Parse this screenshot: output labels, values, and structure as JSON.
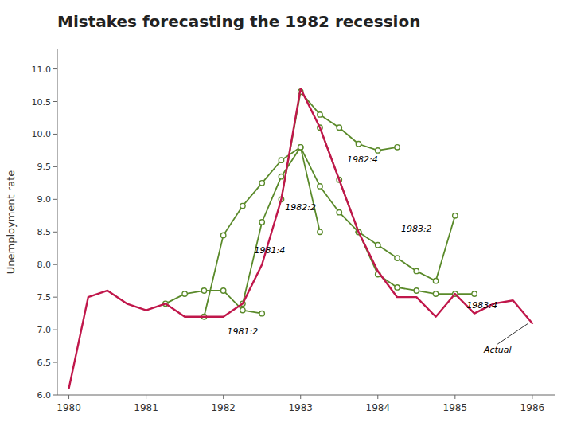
{
  "chart_data": {
    "type": "line",
    "title": "Mistakes forecasting the 1982 recession",
    "y_label": "Unemployment rate",
    "xlim": [
      1979.85,
      1986.3
    ],
    "ylim": [
      6.0,
      11.3
    ],
    "xticks": [
      1980,
      1981,
      1982,
      1983,
      1984,
      1985,
      1986
    ],
    "yticks": [
      {
        "value": 6.0,
        "label": "6.0"
      },
      6.5,
      {
        "value": 7.0,
        "label": "7.0"
      },
      7.5,
      {
        "value": 8.0,
        "label": "8.0"
      },
      8.5,
      {
        "value": 9.0,
        "label": "9.0"
      },
      9.5,
      {
        "value": 10.0,
        "label": "10.0"
      },
      10.5,
      {
        "value": 11.0,
        "label": "11.0"
      }
    ],
    "grid": false,
    "series": [
      {
        "color": "#c0174b",
        "x": [
          1980.0,
          1980.25,
          1980.5,
          1980.75,
          1981.0,
          1981.25,
          1981.5,
          1981.75,
          1982.0,
          1982.25,
          1982.5,
          1982.75,
          1983.0,
          1983.25,
          1983.5,
          1983.75,
          1984.0,
          1984.25,
          1984.5,
          1984.75,
          1985.0,
          1985.25,
          1985.5,
          1985.75,
          1986.0
        ],
        "values": [
          6.1,
          7.5,
          7.6,
          7.4,
          7.3,
          7.4,
          7.2,
          7.2,
          7.2,
          7.4,
          8.0,
          9.0,
          10.7,
          10.1,
          9.3,
          8.5,
          7.9,
          7.5,
          7.5,
          7.2,
          7.55,
          7.25,
          7.4,
          7.45,
          7.1
        ]
      },
      {
        "color": "#5a8a2a",
        "marker": "circle",
        "x": [
          1981.25,
          1981.5,
          1981.75,
          1982.0,
          1982.25,
          1982.5
        ],
        "values": [
          7.4,
          7.55,
          7.6,
          7.6,
          7.3,
          7.25
        ]
      },
      {
        "color": "#5a8a2a",
        "marker": "circle",
        "x": [
          1981.75,
          1982.0,
          1982.25,
          1982.5,
          1982.75,
          1983.0,
          1983.25
        ],
        "values": [
          7.2,
          8.45,
          8.9,
          9.25,
          9.6,
          9.8,
          8.5
        ]
      },
      {
        "color": "#5a8a2a",
        "marker": "circle",
        "x": [
          1982.25,
          1982.5,
          1982.75,
          1983.0,
          1983.25,
          1983.5,
          1983.75
        ],
        "values": [
          7.4,
          8.65,
          9.35,
          9.8,
          9.2,
          8.8,
          8.5
        ]
      },
      {
        "color": "#5a8a2a",
        "marker": "circle",
        "x": [
          1982.75,
          1983.0,
          1983.25,
          1983.5,
          1983.75,
          1984.0,
          1984.25
        ],
        "values": [
          9.0,
          10.65,
          10.3,
          10.1,
          9.85,
          9.75,
          9.8
        ]
      },
      {
        "color": "#5a8a2a",
        "marker": "circle",
        "x": [
          1983.25,
          1983.5,
          1983.75,
          1984.0,
          1984.25,
          1984.5,
          1984.75,
          1985.0
        ],
        "values": [
          10.1,
          9.3,
          8.5,
          8.3,
          8.1,
          7.9,
          7.75,
          8.75
        ]
      },
      {
        "color": "#5a8a2a",
        "marker": "circle",
        "x": [
          1983.75,
          1984.0,
          1984.25,
          1984.5,
          1984.75,
          1985.0,
          1985.25
        ],
        "values": [
          8.5,
          7.85,
          7.65,
          7.6,
          7.55,
          7.55,
          7.55
        ]
      }
    ],
    "annotations": [
      {
        "text": "1981:2",
        "x": 1982.05,
        "y": 6.98
      },
      {
        "text": "1981:4",
        "x": 1982.4,
        "y": 8.22
      },
      {
        "text": "1982:2",
        "x": 1982.8,
        "y": 8.88
      },
      {
        "text": "1982:4",
        "x": 1983.6,
        "y": 9.62
      },
      {
        "text": "1983:2",
        "x": 1984.3,
        "y": 8.55
      },
      {
        "text": "1983:4",
        "x": 1985.15,
        "y": 7.38
      },
      {
        "text": "Actual",
        "x": 1985.55,
        "y": 6.78,
        "arrow_x": 1985.95,
        "arrow_y": 7.1
      }
    ]
  }
}
